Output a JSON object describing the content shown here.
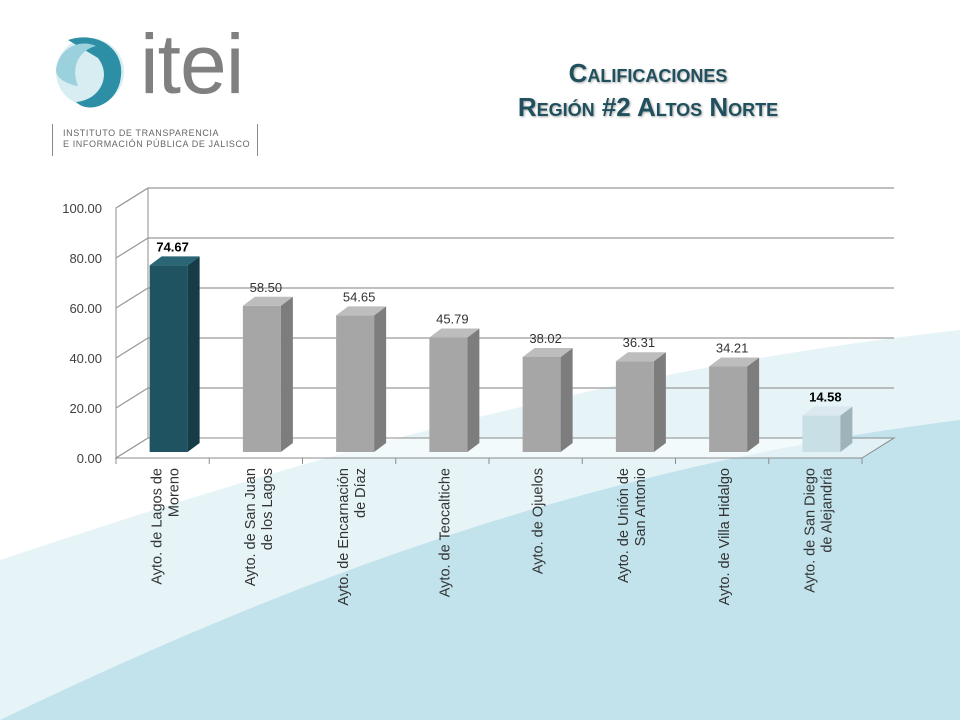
{
  "logo": {
    "word": "itei",
    "subtitle_line1": "INSTITUTO DE TRANSPARENCIA",
    "subtitle_line2": "E INFORMACIÓN PÚBLICA DE JALISCO"
  },
  "title_line1": "Calificaciones",
  "title_line2": "Región #2 Altos Norte",
  "colors": {
    "highlight": "#1f5361",
    "gray_bar": "#a6a6a6",
    "low_bar": "#c9dfe6",
    "title": "#20505e",
    "bg_accent": "#bfe2ea"
  },
  "chart_data": {
    "type": "bar",
    "categories": [
      [
        "Ayto. de Lagos de",
        "Moreno"
      ],
      [
        "Ayto. de San Juan",
        "de los Lagos"
      ],
      [
        "Ayto. de Encarnación",
        "de Díaz"
      ],
      [
        "Ayto. de Teocaltiche"
      ],
      [
        "Ayto. de Ojuelos"
      ],
      [
        "Ayto. de Unión de",
        "San Antonio"
      ],
      [
        "Ayto. de Villa Hidalgo"
      ],
      [
        "Ayto. de San Diego",
        "de Alejandría"
      ]
    ],
    "values": [
      74.67,
      58.5,
      54.65,
      45.79,
      38.02,
      36.31,
      34.21,
      14.58
    ],
    "value_labels": [
      "74.67",
      "58.50",
      "54.65",
      "45.79",
      "38.02",
      "36.31",
      "34.21",
      "14.58"
    ],
    "bold_labels": [
      true,
      false,
      false,
      false,
      false,
      false,
      false,
      true
    ],
    "bar_styles": [
      "highlight",
      "gray",
      "gray",
      "gray",
      "gray",
      "gray",
      "gray",
      "low"
    ],
    "yticks": [
      "0.00",
      "20.00",
      "40.00",
      "60.00",
      "80.00",
      "100.00"
    ],
    "ylim": [
      0,
      100
    ],
    "grid": true,
    "style": "3d-column"
  }
}
